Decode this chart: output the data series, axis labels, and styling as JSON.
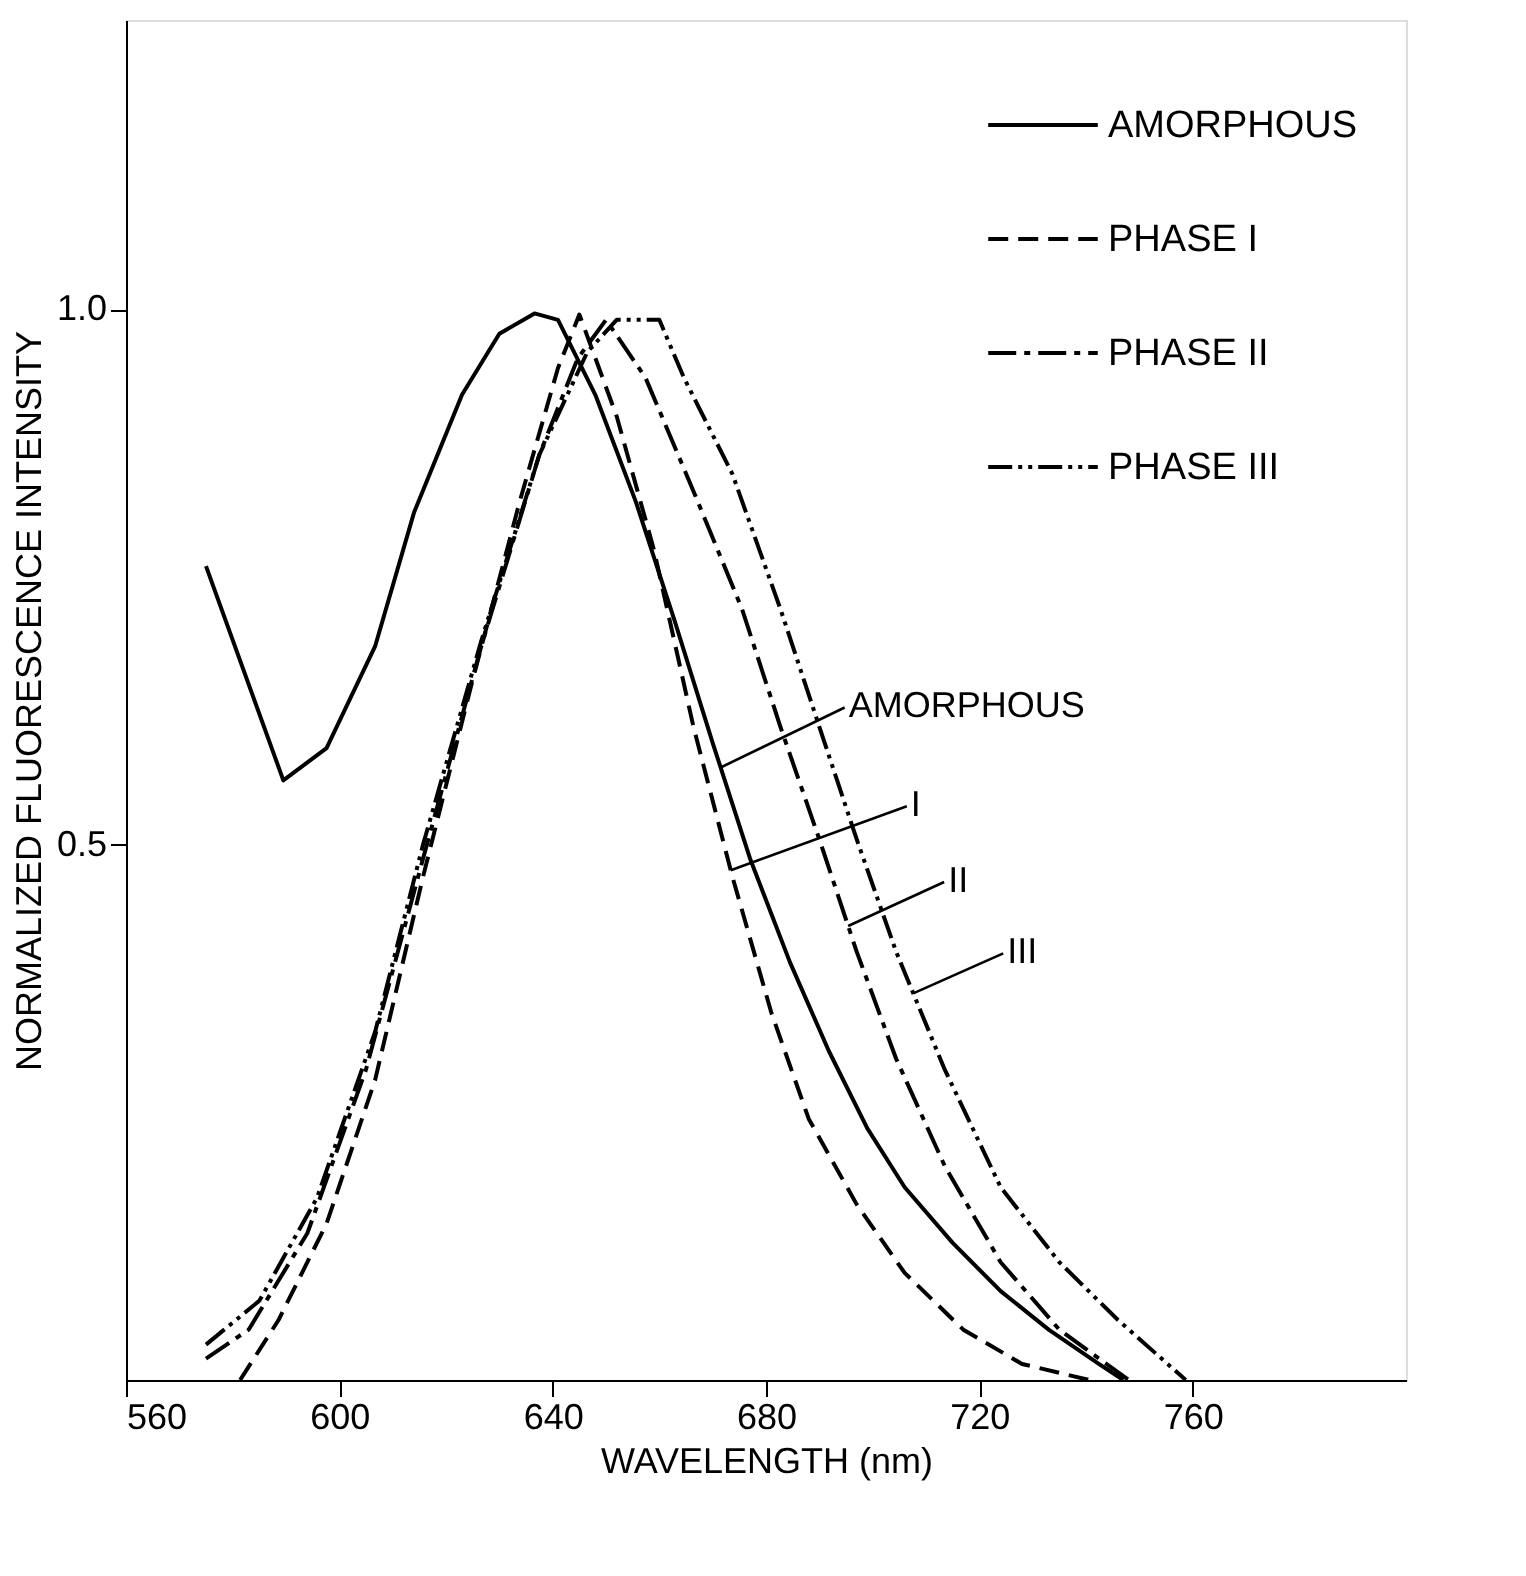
{
  "chart_data": {
    "type": "line",
    "xlabel": "WAVELENGTH (nm)",
    "ylabel": "NORMALIZED FLUORESCENCE INTENSITY",
    "xlim": [
      560,
      800
    ],
    "xticks": [
      560,
      600,
      640,
      680,
      720,
      760
    ],
    "ylim": [
      0,
      1.27
    ],
    "yticks": [
      0.5,
      {
        "value": 1.0,
        "label": "1.0"
      }
    ],
    "grid": false,
    "legend": "top right",
    "marker": "none",
    "series": [
      {
        "name": "AMORPHOUS",
        "color": "#000000",
        "line_style": "solid",
        "x": [
          575,
          589.5,
          597.6,
          606.7,
          614,
          623,
          630,
          636.6,
          641,
          648,
          655.6,
          662.8,
          670,
          677,
          684.5,
          691.8,
          699,
          706,
          715,
          724,
          733,
          742.4,
          747
        ],
        "values": [
          0.76,
          0.56,
          0.59,
          0.685,
          0.81,
          0.92,
          0.977,
          0.996,
          0.99,
          0.92,
          0.82,
          0.71,
          0.595,
          0.487,
          0.39,
          0.307,
          0.235,
          0.18,
          0.128,
          0.083,
          0.047,
          0.015,
          0
        ]
      },
      {
        "name": "PHASE I",
        "color": "#000000",
        "line_style": "dashed",
        "x": [
          581.4,
          588.6,
          597.6,
          606.7,
          615.7,
          624.8,
          633.8,
          641,
          645,
          652,
          659,
          666.4,
          673.7,
          681,
          688,
          697,
          706,
          717,
          728,
          740.6
        ],
        "values": [
          0,
          0.056,
          0.146,
          0.28,
          0.47,
          0.65,
          0.82,
          0.945,
          0.995,
          0.9,
          0.775,
          0.61,
          0.47,
          0.343,
          0.244,
          0.164,
          0.1,
          0.047,
          0.015,
          0
        ]
      },
      {
        "name": "PHASE II",
        "color": "#000000",
        "line_style": "dashdot",
        "x": [
          575,
          583,
          594,
          605,
          615.7,
          626.6,
          637.5,
          644.7,
          650,
          657.4,
          666.4,
          675.5,
          682.7,
          690,
          697,
          704.4,
          713.5,
          724,
          735,
          748
        ],
        "values": [
          0.02,
          0.047,
          0.137,
          0.29,
          0.487,
          0.685,
          0.864,
          0.954,
          0.99,
          0.936,
          0.83,
          0.72,
          0.61,
          0.505,
          0.4,
          0.3,
          0.2,
          0.11,
          0.047,
          0
        ]
      },
      {
        "name": "PHASE III",
        "color": "#000000",
        "line_style": "dashdotdot",
        "x": [
          575,
          585,
          595.8,
          606.7,
          615.7,
          626.6,
          637.5,
          646.5,
          652,
          660,
          664.6,
          673.7,
          682.7,
          690,
          697,
          704.4,
          713.5,
          724,
          735,
          746,
          758.7
        ],
        "values": [
          0.033,
          0.074,
          0.17,
          0.325,
          0.5,
          0.69,
          0.864,
          0.96,
          0.99,
          0.99,
          0.936,
          0.846,
          0.72,
          0.61,
          0.505,
          0.4,
          0.29,
          0.18,
          0.11,
          0.056,
          0
        ]
      }
    ],
    "annotations": [
      {
        "text": "AMORPHOUS",
        "x": 671.5,
        "y": 0.572
      },
      {
        "text": "I",
        "x": 673.4,
        "y": 0.476
      },
      {
        "text": "II",
        "x": 695.4,
        "y": 0.424
      },
      {
        "text": "III",
        "x": 707.6,
        "y": 0.361
      }
    ]
  }
}
